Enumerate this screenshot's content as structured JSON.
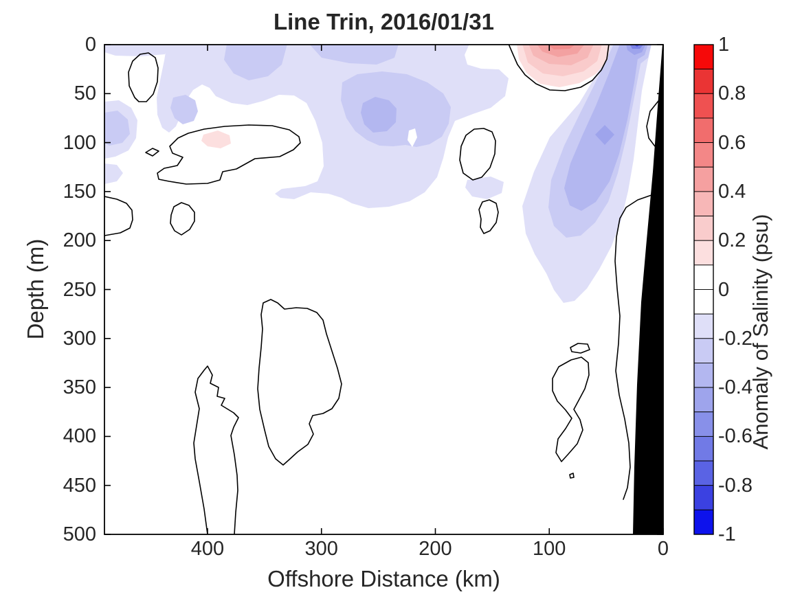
{
  "figure": {
    "title": "Line Trin, 2016/01/31",
    "x_axis": {
      "label": "Offshore Distance (km)",
      "ticks": [
        "400",
        "300",
        "200",
        "100",
        "0"
      ]
    },
    "y_axis": {
      "label": "Depth (m)",
      "ticks": [
        "0",
        "50",
        "100",
        "150",
        "200",
        "250",
        "300",
        "350",
        "400",
        "450",
        "500"
      ]
    },
    "colorbar": {
      "label": "Anomaly of Salinity (psu)",
      "ticks": [
        "1",
        "0.8",
        "0.6",
        "0.4",
        "0.2",
        "0",
        "-0.2",
        "-0.4",
        "-0.6",
        "-0.8",
        "-1"
      ],
      "segment_colors": [
        "#f60909",
        "#ea3434",
        "#ef5151",
        "#f16d6d",
        "#f38787",
        "#f5a0a0",
        "#f7b7b7",
        "#f9cccc",
        "#fcdfdf",
        "#ffffff",
        "#ffffff",
        "#dfdff8",
        "#c9cbf4",
        "#b3b7f0",
        "#9ea4ec",
        "#8890e9",
        "#717ae6",
        "#5a63e4",
        "#3b41e1",
        "#0d12ec"
      ]
    },
    "palette": {
      "n1": "#dfdff8",
      "n2": "#c9cbf4",
      "n3": "#b3b7f0",
      "n4": "#9ea4ec",
      "n5": "#7b82e7",
      "n6": "#4950e2",
      "p1": "#fcdfdf",
      "p2": "#f9cbcb",
      "p3": "#f6b7b7",
      "p4": "#f3a1a1",
      "p5": "#f18c8c",
      "white": "#ffffff",
      "land": "#000000"
    }
  },
  "chart_data": {
    "type": "filled_contour",
    "title": "Line Trin, 2016/01/31",
    "xlabel": "Offshore Distance (km)",
    "ylabel": "Depth (m)",
    "colorbar_label": "Anomaly of Salinity (psu)",
    "x_ticks": [
      400,
      300,
      200,
      100,
      0
    ],
    "y_ticks": [
      0,
      50,
      100,
      150,
      200,
      250,
      300,
      350,
      400,
      450,
      500
    ],
    "x_range_km": [
      490,
      0
    ],
    "y_range_m": [
      0,
      500
    ],
    "x_axis_reversed": true,
    "y_axis_reversed": true,
    "colorbar_range": [
      -1,
      1
    ],
    "colorbar_tick_step": 0.2,
    "contour_level_step": 0.1,
    "zero_contour_line_color": "#000000",
    "grid": false,
    "features": [
      {
        "kind": "positive_surface_anomaly_pool",
        "offshore_km": [
          45,
          135
        ],
        "depth_m": [
          0,
          45
        ],
        "peak_anomaly_psu": 0.5
      },
      {
        "kind": "strong_negative_anomaly_nearshore_surface",
        "offshore_km": [
          9,
          36
        ],
        "depth_m": [
          0,
          25
        ],
        "peak_anomaly_psu": -0.7
      },
      {
        "kind": "negative_subsurface_band_sloping_offshore",
        "offshore_km": [
          10,
          125
        ],
        "depth_m": [
          0,
          265
        ],
        "peak_anomaly_psu": -0.45
      },
      {
        "kind": "broad_weak_negative_upper_layer",
        "offshore_km": [
          135,
          445
        ],
        "depth_m": [
          0,
          165
        ],
        "peak_anomaly_psu": -0.35
      },
      {
        "kind": "weak_positive_pocket",
        "offshore_km": [
          385,
          405
        ],
        "depth_m": [
          92,
          108
        ],
        "peak_anomaly_psu": 0.15
      },
      {
        "kind": "near_zero_anomaly_deep_water_with_zero_contour_loops",
        "offshore_km": [
          0,
          490
        ],
        "depth_m": [
          180,
          500
        ],
        "peak_anomaly_psu": 0.0
      },
      {
        "kind": "bathymetry_land_mask_black_wedge",
        "offshore_km": [
          0,
          27
        ],
        "depth_m": [
          0,
          500
        ]
      }
    ]
  }
}
